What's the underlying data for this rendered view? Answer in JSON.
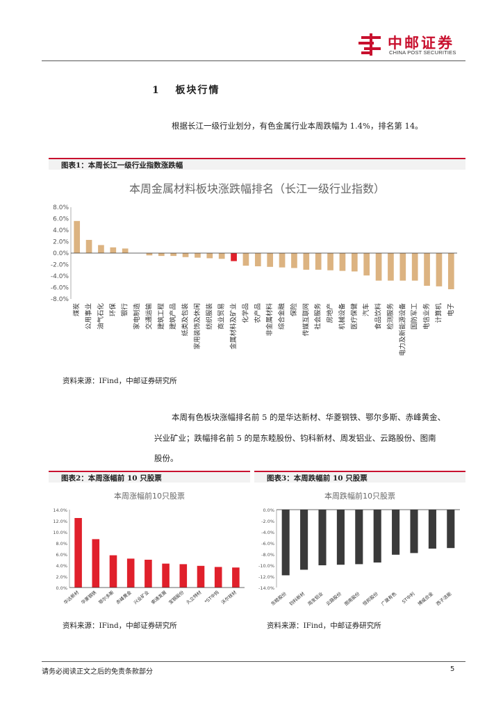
{
  "header": {
    "logo_cn": "中邮证券",
    "logo_en": "CHINA POST SECURITIES"
  },
  "section": {
    "number": "1",
    "title": "板块行情"
  },
  "para1": "根据长江一级行业划分，有色金属行业本周跌幅为 1.4%，排名第 14。",
  "fig1": {
    "caption": "图表1：本周长江一级行业指数涨跌幅",
    "source": "资料来源：IFind，中邮证券研究所"
  },
  "para2_line1": "本周有色板块涨幅排名前 5 的是华达新材、华菱钢铁、鄂尔多斯、赤峰黄金、",
  "para2_line2": "兴业矿业；跌幅排名前 5 的是东睦股份、钧科新材、周发铝业、云路股份、图南",
  "para2_line3": "股份。",
  "fig2": {
    "caption": "图表2：本周涨幅前 10 只股票",
    "source": "资料来源：IFind，中邮证券研究所"
  },
  "fig3": {
    "caption": "图表3：本周跌幅前 10 只股票",
    "source": "资料来源：IFind，中邮证券研究所"
  },
  "footer": {
    "disclaimer": "请务必阅读正文之后的免责条款部分",
    "page": "5"
  },
  "colors": {
    "brand_red": "#c8102e",
    "bar_tan": "#dcb381",
    "bar_highlight": "#e0202b",
    "bar_red": "#e0202b",
    "bar_dark": "#3a3a3a"
  },
  "chart_data": [
    {
      "type": "bar",
      "title": "本周金属材料板块涨跌幅排名（长江一级行业指数）",
      "categories": [
        "煤炭",
        "公用事业",
        "油气石化",
        "环保",
        "银行",
        "家电制造",
        "交通运输",
        "建筑工程",
        "建筑产品",
        "纸类及包装",
        "家用装饰及休闲",
        "纺织服装",
        "商业贸易",
        "金属材料及矿业",
        "化学品",
        "农产品",
        "非金属材料",
        "综合金融",
        "保险",
        "传媒互联网",
        "社会服务",
        "房地产",
        "机械设备",
        "医疗保健",
        "汽车",
        "食品饮料",
        "检测服务",
        "电力及新能源设备",
        "国防军工",
        "电信业务",
        "计算机",
        "电子"
      ],
      "values": [
        5.6,
        2.3,
        1.4,
        1.0,
        0.8,
        0.0,
        -0.4,
        -0.5,
        -0.5,
        -0.7,
        -0.8,
        -0.9,
        -1.0,
        -1.4,
        -2.2,
        -2.3,
        -2.4,
        -2.5,
        -2.6,
        -2.9,
        -2.9,
        -3.0,
        -3.1,
        -3.2,
        -3.9,
        -4.8,
        -4.8,
        -4.8,
        -4.8,
        -5.7,
        -5.8,
        -6.3
      ],
      "highlight": "金属材料及矿业",
      "ylim": [
        -8,
        8
      ],
      "yticks": [
        "8.0%",
        "6.0%",
        "4.0%",
        "2.0%",
        "0.0%",
        "-2.0%",
        "-4.0%",
        "-6.0%",
        "-8.0%"
      ],
      "grid": false,
      "legend": "none"
    },
    {
      "type": "bar",
      "title": "本周涨幅前10只股票",
      "categories": [
        "华达新材",
        "华菱钢铁",
        "鄂尔多斯",
        "赤峰黄金",
        "兴业矿业",
        "索通发展",
        "宝钢股份",
        "久立特材",
        "*ST中钨",
        "沃尔核材"
      ],
      "values": [
        12.5,
        8.7,
        5.8,
        5.2,
        5.0,
        4.3,
        4.2,
        3.9,
        3.7,
        3.6
      ],
      "ylim": [
        0,
        14
      ],
      "yticks": [
        "14.0%",
        "12.0%",
        "10.0%",
        "8.0%",
        "6.0%",
        "4.0%",
        "2.0%",
        "0.0%"
      ],
      "grid": false,
      "legend": "none"
    },
    {
      "type": "bar",
      "title": "本周跌幅前10只股票",
      "categories": [
        "东睦股份",
        "钧科新材",
        "周发铝业",
        "云路股份",
        "图南股份",
        "恒邦股份",
        "广晟有色",
        "ST中利",
        "博威合金",
        "西子洁能"
      ],
      "values": [
        -11.8,
        -10.8,
        -10.0,
        -9.9,
        -9.8,
        -9.5,
        -8.1,
        -7.8,
        -7.0,
        -6.9
      ],
      "ylim": [
        -14,
        0
      ],
      "yticks": [
        "0.0%",
        "-2.0%",
        "-4.0%",
        "-6.0%",
        "-8.0%",
        "-10.0%",
        "-12.0%",
        "-14.0%"
      ],
      "grid": false,
      "legend": "none"
    }
  ]
}
